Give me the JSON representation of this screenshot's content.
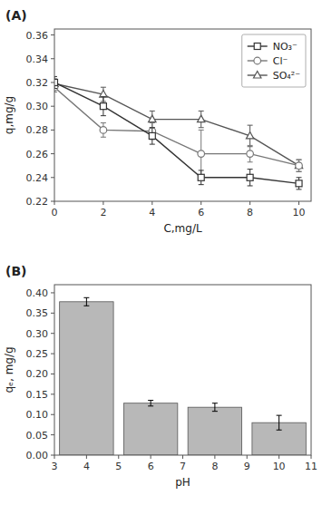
{
  "chart_data": [
    {
      "type": "line",
      "annotation": "(A)",
      "xlabel": "C,mg/L",
      "ylabel": "q,mg/g",
      "x": [
        0,
        2,
        4,
        6,
        8,
        10
      ],
      "series": [
        {
          "name": "NO₃⁻",
          "color": "#333333",
          "marker": "square",
          "values": [
            0.32,
            0.3,
            0.275,
            0.24,
            0.24,
            0.235
          ],
          "errors": [
            0.005,
            0.008,
            0.007,
            0.006,
            0.007,
            0.005
          ]
        },
        {
          "name": "Cl⁻",
          "color": "#777777",
          "marker": "circle",
          "values": [
            0.316,
            0.28,
            0.279,
            0.26,
            0.26,
            0.25
          ],
          "errors": [
            0.004,
            0.006,
            0.007,
            0.02,
            0.007,
            0.005
          ]
        },
        {
          "name": "SO₄²⁻",
          "color": "#555555",
          "marker": "triangle",
          "values": [
            0.319,
            0.31,
            0.289,
            0.289,
            0.275,
            0.25
          ],
          "errors": [
            0.004,
            0.006,
            0.007,
            0.007,
            0.009,
            0.005
          ]
        }
      ],
      "xlim": [
        0,
        10.5
      ],
      "ylim": [
        0.22,
        0.365
      ],
      "xticks": [
        0,
        2,
        4,
        6,
        8,
        10
      ],
      "yticks": [
        0.22,
        0.24,
        0.26,
        0.28,
        {
          "value": 0.3,
          "label": "0.30"
        },
        0.32,
        0.34,
        0.36
      ],
      "legend": "upper right",
      "grid": false
    },
    {
      "type": "bar",
      "annotation": "(B)",
      "xlabel": "pH",
      "ylabel": "qₑ, mg/g",
      "x": [
        4,
        6,
        8,
        10
      ],
      "values": [
        0.378,
        0.128,
        0.118,
        0.08
      ],
      "errors": [
        0.01,
        0.007,
        0.01,
        0.018
      ],
      "color": "#b8b8b8",
      "xlim": [
        3,
        11
      ],
      "ylim": [
        0.0,
        0.42
      ],
      "xticks": [
        3,
        4,
        5,
        6,
        7,
        8,
        9,
        10,
        11
      ],
      "yticks": [
        {
          "value": 0,
          "label": "0.00"
        },
        0.05,
        {
          "value": 0.1,
          "label": "0.10"
        },
        0.15,
        {
          "value": 0.2,
          "label": "0.20"
        },
        0.25,
        {
          "value": 0.3,
          "label": "0.30"
        },
        0.35,
        {
          "value": 0.4,
          "label": "0.40"
        }
      ],
      "grid": false
    }
  ]
}
